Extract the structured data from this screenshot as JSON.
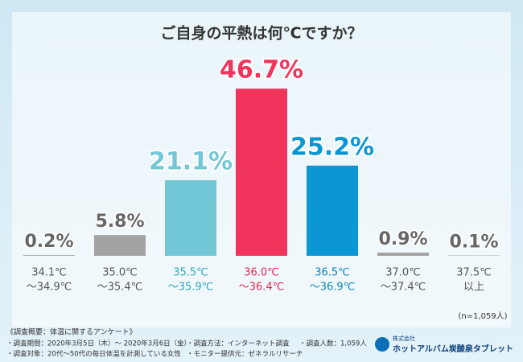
{
  "chart_data": {
    "type": "bar",
    "title": "ご自身の平熱は何℃ですか？",
    "categories": [
      [
        "34.1℃",
        "〜34.9℃"
      ],
      [
        "35.0℃",
        "〜35.4℃"
      ],
      [
        "35.5℃",
        "〜35.9℃"
      ],
      [
        "36.0℃",
        "〜36.4℃"
      ],
      [
        "36.5℃",
        "〜36.9℃"
      ],
      [
        "37.0℃",
        "〜37.4℃"
      ],
      [
        "37.5℃",
        "以上"
      ]
    ],
    "values": [
      0.2,
      5.8,
      21.1,
      46.7,
      25.2,
      0.9,
      0.1
    ],
    "value_labels": [
      "0.2%",
      "5.8%",
      "21.1%",
      "46.7%",
      "25.2%",
      "0.9%",
      "0.1%"
    ],
    "colors": [
      "#a3a3a3",
      "#a3a3a3",
      "#72c7d6",
      "#f1345c",
      "#0b97d3",
      "#a3a3a3",
      "#a3a3a3"
    ],
    "label_colors": [
      "#555555",
      "#555555",
      "#2aa9c0",
      "#e8234f",
      "#0b86c2",
      "#555555",
      "#555555"
    ],
    "note": "(n=1,059人)"
  },
  "footer": {
    "heading": "《調査概要：体温に関するアンケート》",
    "items": [
      "・調査期間：2020年3月5日（木）〜 2020年3月6日（金）",
      "・調査方法：インターネット調査",
      "・調査人数：1,059人",
      "・調査対象：20代〜50代の毎日体温を計測している女性",
      "・モニター提供元：ゼネラルリサーチ"
    ],
    "company_prefix": "株式会社",
    "company": "ホットアルバム炭酸泉タブレット"
  }
}
